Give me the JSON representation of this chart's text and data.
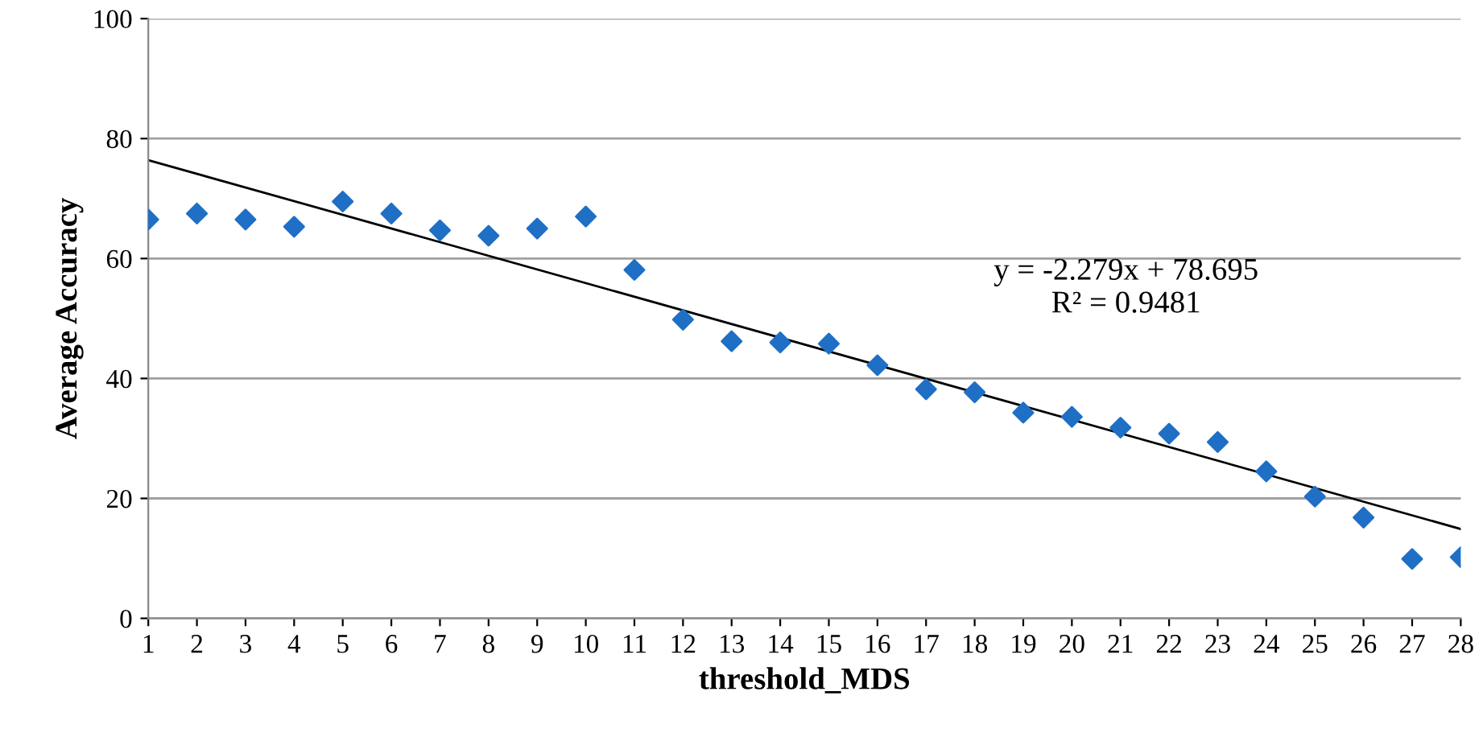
{
  "chart_data": {
    "type": "scatter",
    "xlabel": "threshold_MDS",
    "ylabel": "Average Accuracy",
    "xlim": [
      1,
      28
    ],
    "xticks": [
      1,
      2,
      3,
      4,
      5,
      6,
      7,
      8,
      9,
      10,
      11,
      12,
      13,
      14,
      15,
      16,
      17,
      18,
      19,
      20,
      21,
      22,
      23,
      24,
      25,
      26,
      27,
      28
    ],
    "ylim": [
      0,
      100
    ],
    "yticks": [
      0,
      20,
      40,
      60,
      80,
      100
    ],
    "grid": "y",
    "legend": false,
    "marker": "diamond",
    "series": [
      {
        "color": "#1f6fc5",
        "x": [
          1,
          2,
          3,
          4,
          5,
          6,
          7,
          8,
          9,
          10,
          11,
          12,
          13,
          14,
          15,
          16,
          17,
          18,
          19,
          20,
          21,
          22,
          23,
          24,
          25,
          26,
          27,
          28
        ],
        "values": [
          66.5,
          67.5,
          66.5,
          65.3,
          69.5,
          67.5,
          64.7,
          63.8,
          65,
          67,
          58.1,
          49.8,
          46.2,
          46,
          45.8,
          42.2,
          38.2,
          37.7,
          34.3,
          33.6,
          31.8,
          30.8,
          29.4,
          24.5,
          20.3,
          16.8,
          9.9,
          10.2
        ]
      },
      {
        "type": "line",
        "color": "#000000",
        "x": [
          1,
          28
        ],
        "values": [
          76.4,
          14.9
        ],
        "marker": "none",
        "line_style": "solid"
      }
    ],
    "annotations": [
      "y = -2.279x + 78.695\nR² = 0.9481"
    ]
  }
}
